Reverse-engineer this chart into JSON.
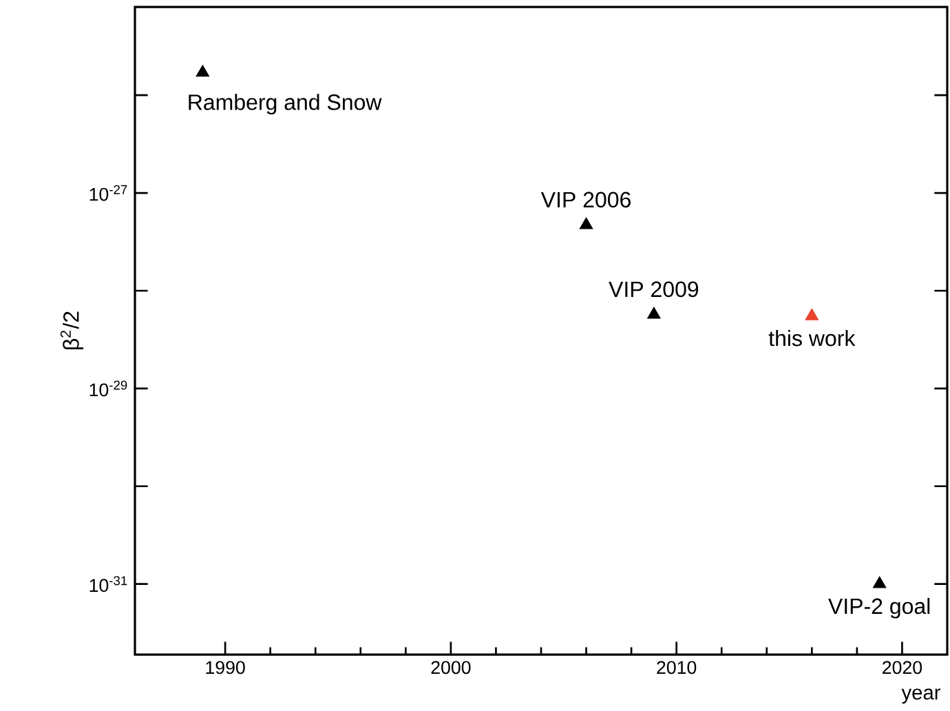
{
  "chart_data": {
    "type": "scatter",
    "xlabel": "year",
    "ylabel": "β$^{2}$/2",
    "log": "y",
    "marker": "triangle",
    "xlim": [
      1986,
      2022
    ],
    "xticks": [
      1990,
      2000,
      2010,
      2020
    ],
    "ylim": [
      1.9e-32,
      8e-26
    ],
    "yticks": [
      {
        "value": 1e-26,
        "label": null
      },
      {
        "value": 1e-27,
        "label": "10$^{-27}$"
      },
      {
        "value": 1e-28,
        "label": null
      },
      {
        "value": 1e-29,
        "label": "10$^{-29}$"
      },
      {
        "value": 1e-30,
        "label": null
      },
      {
        "value": 1e-31,
        "label": "10$^{-31}$"
      }
    ],
    "series": [
      {
        "name": "Ramberg and Snow",
        "color": "#000000",
        "x": [
          1989
        ],
        "values": [
          1.7e-26
        ]
      },
      {
        "name": "VIP 2006",
        "color": "#000000",
        "x": [
          2006
        ],
        "values": [
          4.7e-28
        ]
      },
      {
        "name": "VIP 2009",
        "color": "#000000",
        "x": [
          2009
        ],
        "values": [
          5.7e-29
        ]
      },
      {
        "name": "this work",
        "color": "#e8432e",
        "x": [
          2016
        ],
        "values": [
          5.5e-29
        ]
      },
      {
        "name": "VIP-2 goal",
        "color": "#000000",
        "x": [
          2019
        ],
        "values": [
          1e-31
        ]
      }
    ]
  }
}
